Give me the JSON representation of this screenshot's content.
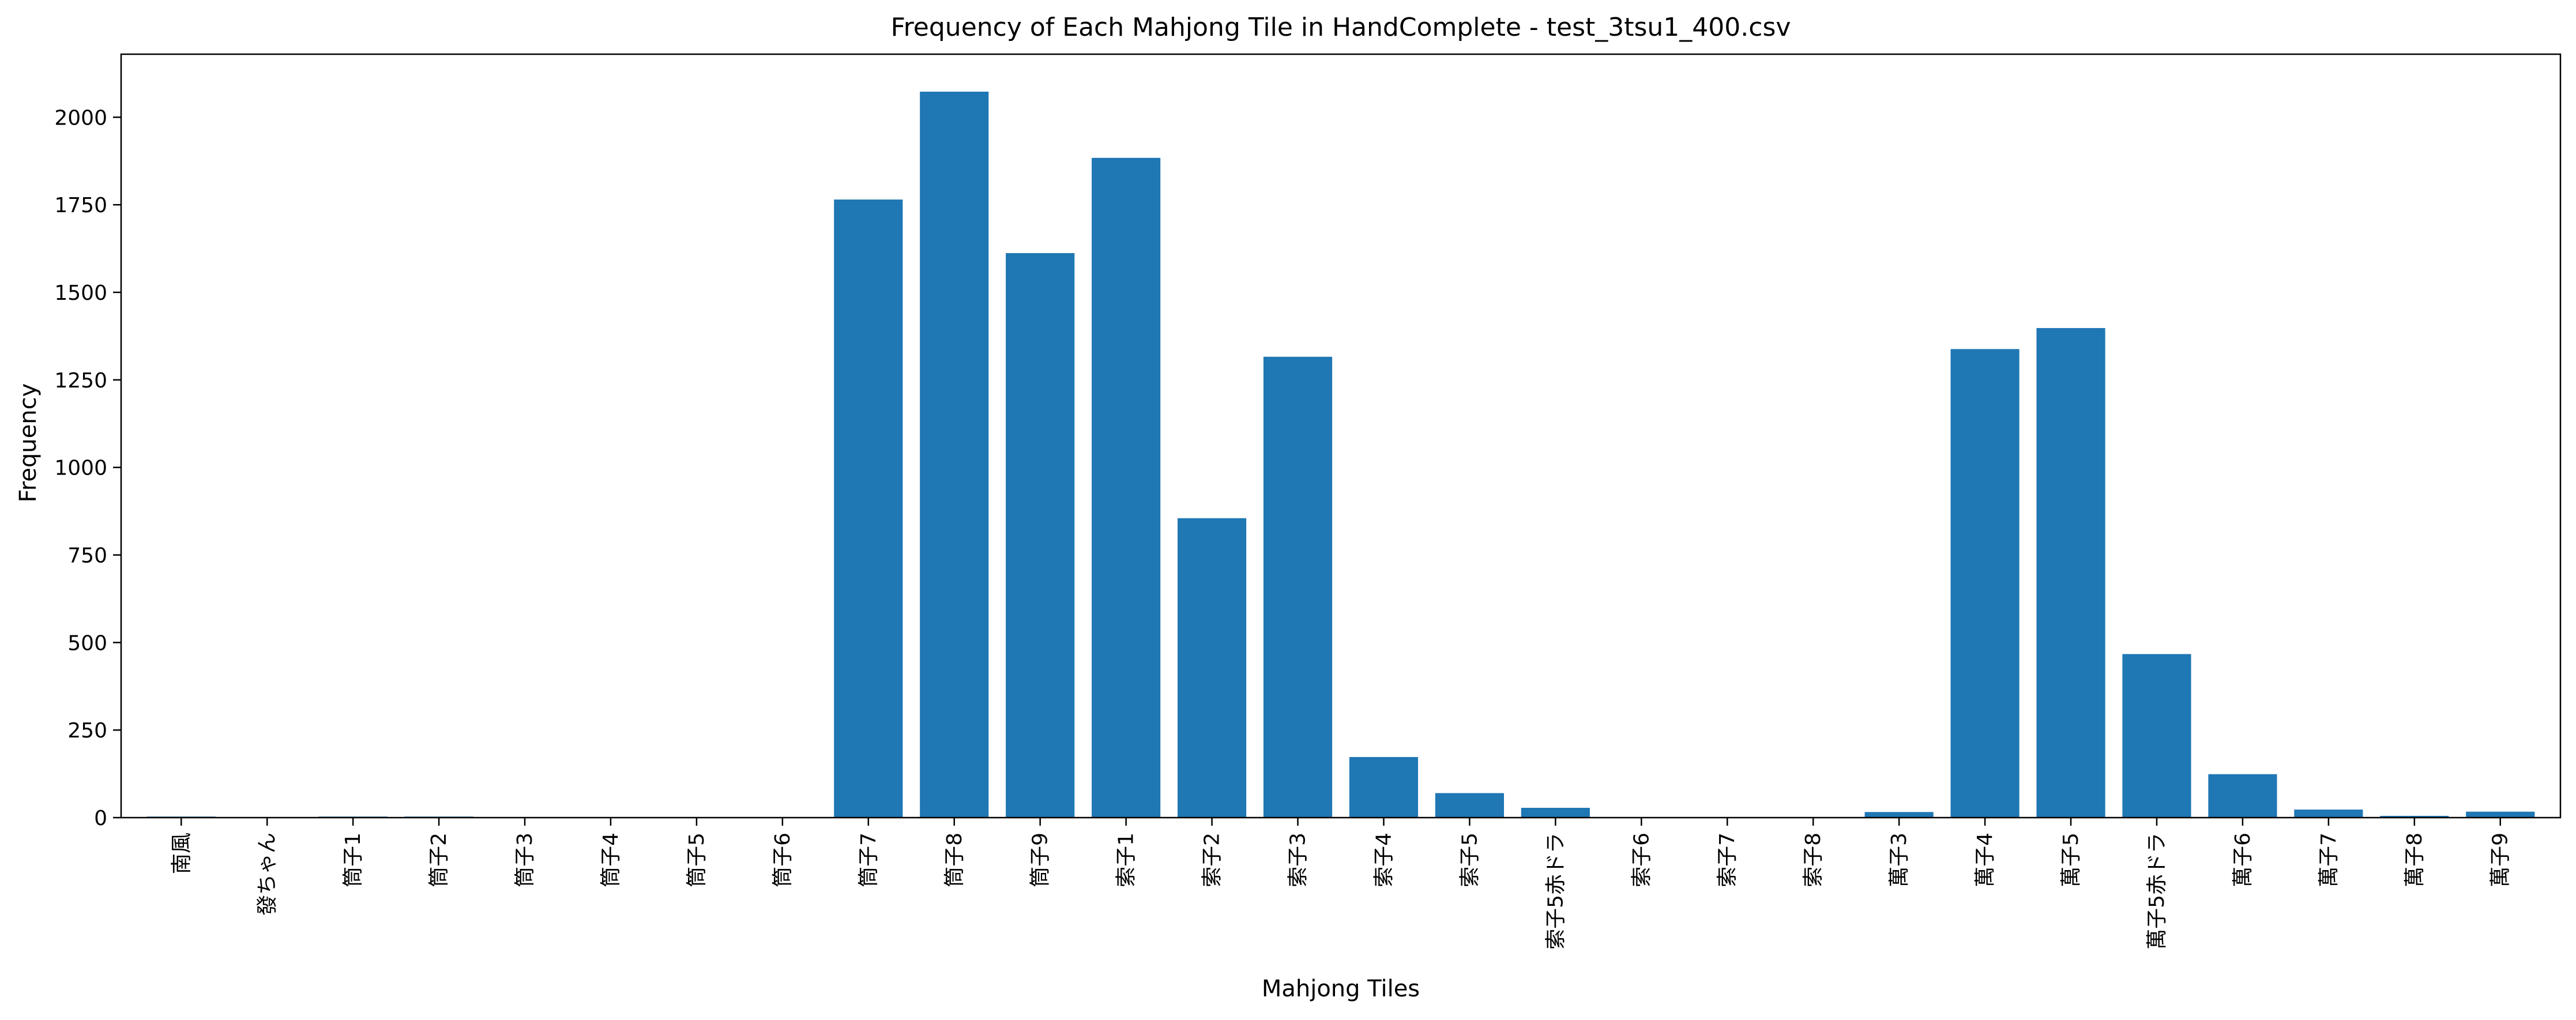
{
  "chart_data": {
    "type": "bar",
    "title": "Frequency of Each Mahjong Tile in HandComplete - test_3tsu1_400.csv",
    "xlabel": "Mahjong Tiles",
    "ylabel": "Frequency",
    "ylim": [
      0,
      2180
    ],
    "yticks": [
      "0",
      "250",
      "500",
      "750",
      "1000",
      "1250",
      "1500",
      "1750",
      "2000"
    ],
    "grid": false,
    "bar_color": "#1f77b4",
    "categories": [
      "南風",
      "發ちゃん",
      "筒子1",
      "筒子2",
      "筒子3",
      "筒子4",
      "筒子5",
      "筒子6",
      "筒子7",
      "筒子8",
      "筒子9",
      "索子1",
      "索子2",
      "索子3",
      "索子4",
      "索子5",
      "索子5赤ドラ",
      "索子6",
      "索子7",
      "索子8",
      "萬子3",
      "萬子4",
      "萬子5",
      "萬子5赤ドラ",
      "萬子6",
      "萬子7",
      "萬子8",
      "萬子9"
    ],
    "values": [
      3,
      1,
      3,
      3,
      1,
      1,
      1,
      1,
      1765,
      2073,
      1612,
      1884,
      855,
      1316,
      173,
      70,
      28,
      1,
      1,
      1,
      16,
      1338,
      1398,
      467,
      124,
      23,
      5,
      17
    ]
  }
}
